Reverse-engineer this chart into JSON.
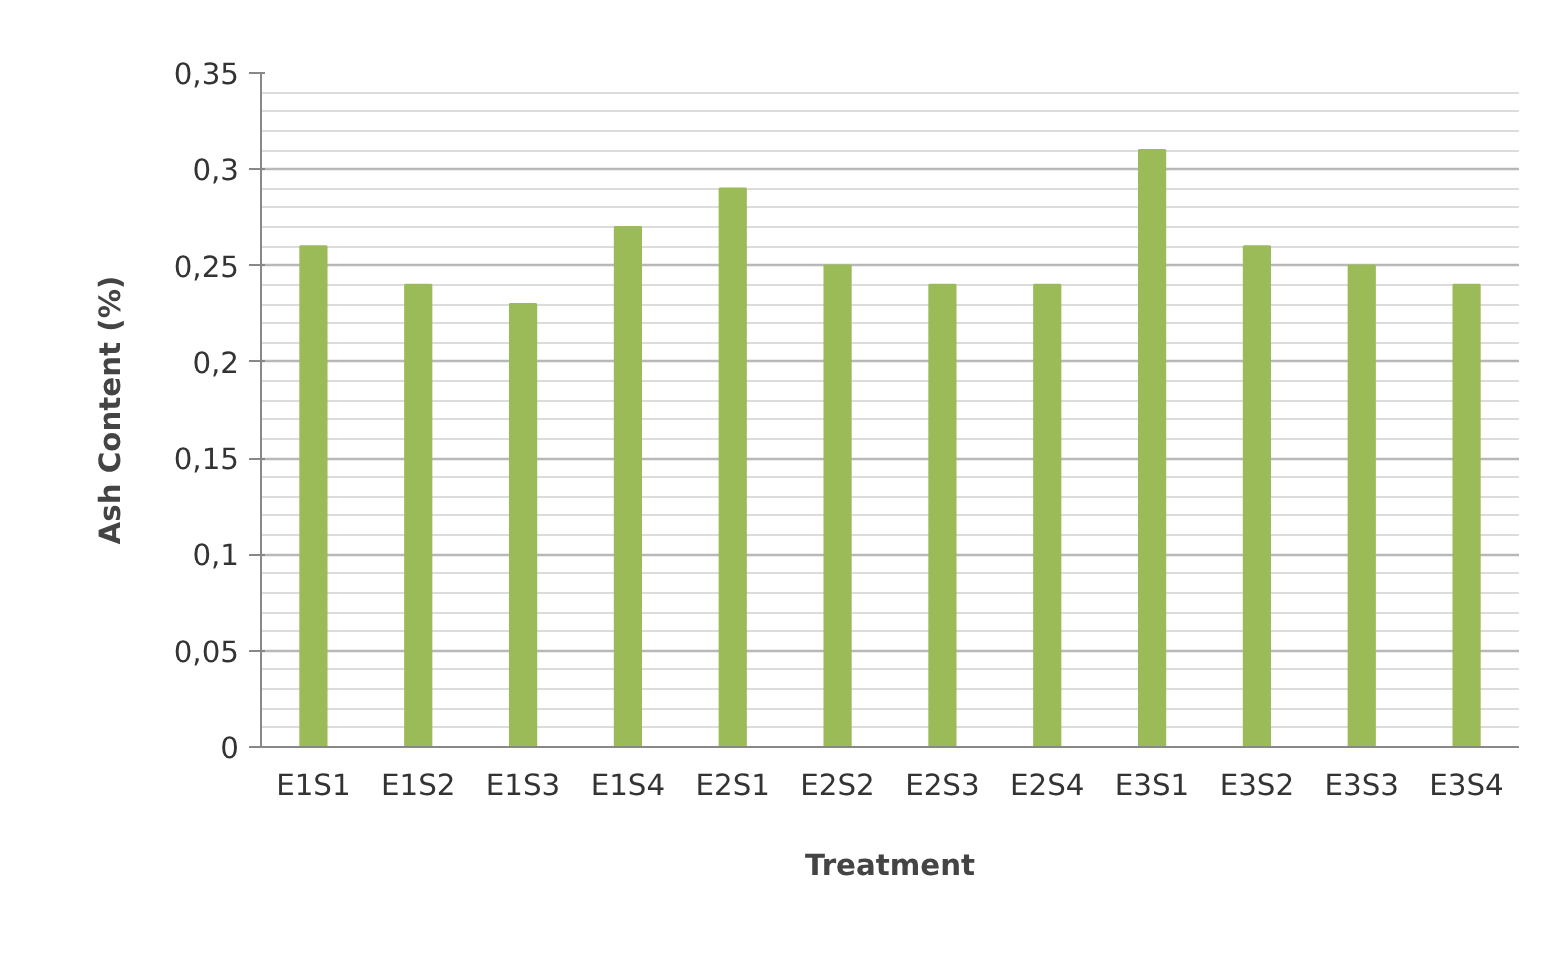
{
  "chart_data": {
    "type": "bar",
    "xlabel": "Treatment",
    "ylabel": "Ash Content (%)",
    "categories": [
      "E1S1",
      "E1S2",
      "E1S3",
      "E1S4",
      "E2S1",
      "E2S2",
      "E2S3",
      "E2S4",
      "E3S1",
      "E3S2",
      "E3S3",
      "E3S4"
    ],
    "values": [
      0.26,
      0.24,
      0.23,
      0.27,
      0.29,
      0.25,
      0.24,
      0.24,
      0.31,
      0.26,
      0.25,
      0.24
    ],
    "color": "#9bbb59",
    "ylim": [
      0,
      0.35
    ],
    "yticks": [
      0,
      {
        "value": 0.05,
        "label": "0,05"
      },
      {
        "value": 0.1,
        "label": "0,1"
      },
      {
        "value": 0.15,
        "label": "0,15"
      },
      {
        "value": 0.2,
        "label": "0,2"
      },
      {
        "value": 0.25,
        "label": "0,25"
      },
      {
        "value": 0.3,
        "label": "0,3"
      },
      {
        "value": 0.35,
        "label": "0,35"
      }
    ],
    "grid": "y"
  }
}
